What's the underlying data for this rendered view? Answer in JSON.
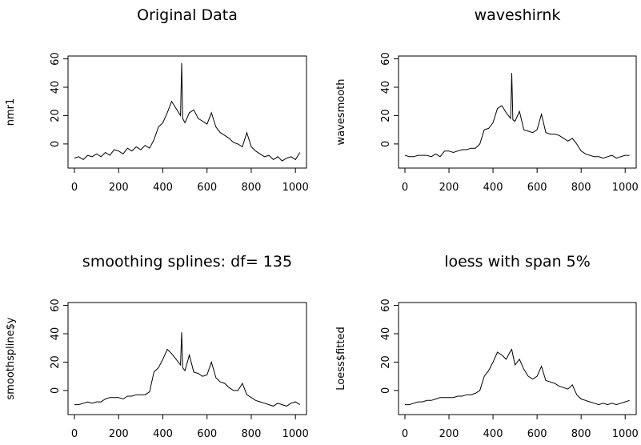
{
  "chart_data": [
    {
      "type": "line",
      "title": "Original Data",
      "y_label": "nmr1",
      "color": "#000000",
      "x": [
        0,
        20,
        40,
        60,
        80,
        100,
        120,
        140,
        160,
        180,
        200,
        220,
        240,
        260,
        280,
        300,
        320,
        340,
        360,
        380,
        400,
        420,
        440,
        460,
        480,
        485,
        490,
        500,
        520,
        540,
        560,
        580,
        600,
        620,
        640,
        660,
        680,
        700,
        720,
        740,
        760,
        780,
        800,
        820,
        840,
        860,
        880,
        900,
        920,
        940,
        960,
        980,
        1000,
        1020
      ],
      "values": [
        -10,
        -9,
        -11,
        -8,
        -9,
        -7,
        -9,
        -6,
        -8,
        -4,
        -5,
        -7,
        -3,
        -5,
        -2,
        -4,
        -1,
        -3,
        3,
        12,
        15,
        22,
        30,
        25,
        20,
        57,
        18,
        15,
        22,
        24,
        18,
        16,
        14,
        22,
        12,
        8,
        6,
        4,
        1,
        0,
        -2,
        8,
        -2,
        -5,
        -7,
        -9,
        -8,
        -11,
        -9,
        -12,
        -10,
        -9,
        -11,
        -6
      ],
      "xlim": [
        -29,
        1050
      ],
      "ylim": [
        -17,
        62
      ],
      "xticks": [
        0,
        200,
        400,
        600,
        800,
        1000
      ],
      "yticks": [
        0,
        20,
        40,
        60
      ]
    },
    {
      "type": "line",
      "title": "waveshirnk",
      "y_label": "wavesmooth",
      "color": "#000000",
      "x": [
        0,
        20,
        40,
        60,
        80,
        100,
        120,
        140,
        160,
        180,
        200,
        220,
        240,
        260,
        280,
        300,
        320,
        340,
        360,
        380,
        400,
        420,
        440,
        460,
        480,
        485,
        490,
        500,
        520,
        540,
        560,
        580,
        600,
        620,
        640,
        660,
        680,
        700,
        720,
        740,
        760,
        780,
        800,
        820,
        840,
        860,
        880,
        900,
        920,
        940,
        960,
        980,
        1000,
        1020
      ],
      "values": [
        -8,
        -9,
        -9,
        -8,
        -8,
        -8,
        -9,
        -7,
        -9,
        -5,
        -5,
        -6,
        -5,
        -4,
        -4,
        -3,
        -3,
        0,
        10,
        11,
        15,
        25,
        27,
        22,
        18,
        50,
        17,
        16,
        23,
        10,
        9,
        8,
        10,
        21,
        8,
        7,
        7,
        6,
        4,
        2,
        4,
        0,
        -5,
        -7,
        -8,
        -9,
        -9,
        -10,
        -9,
        -8,
        -10,
        -9,
        -8,
        -8
      ],
      "xlim": [
        -29,
        1050
      ],
      "ylim": [
        -17,
        62
      ],
      "xticks": [
        0,
        200,
        400,
        600,
        800,
        1000
      ],
      "yticks": [
        0,
        20,
        40,
        60
      ]
    },
    {
      "type": "line",
      "title": "smoothing splines: df= 135",
      "y_label": "smoothspline$y",
      "color": "#000000",
      "x": [
        0,
        20,
        40,
        60,
        80,
        100,
        120,
        140,
        160,
        180,
        200,
        220,
        240,
        260,
        280,
        300,
        320,
        340,
        360,
        380,
        400,
        420,
        440,
        460,
        480,
        485,
        490,
        500,
        520,
        540,
        560,
        580,
        600,
        620,
        640,
        660,
        680,
        700,
        720,
        740,
        760,
        780,
        800,
        820,
        840,
        860,
        880,
        900,
        920,
        940,
        960,
        980,
        1000,
        1020
      ],
      "values": [
        -10,
        -10,
        -9,
        -8,
        -9,
        -8,
        -8,
        -6,
        -5,
        -5,
        -5,
        -6,
        -4,
        -4,
        -3,
        -3,
        -3,
        -1,
        13,
        16,
        22,
        29,
        26,
        22,
        18,
        41,
        16,
        14,
        25,
        13,
        12,
        10,
        11,
        20,
        9,
        6,
        5,
        2,
        0,
        0,
        5,
        -3,
        -5,
        -7,
        -8,
        -9,
        -10,
        -11,
        -9,
        -10,
        -11,
        -9,
        -8,
        -10
      ],
      "xlim": [
        -29,
        1050
      ],
      "ylim": [
        -17,
        62
      ],
      "xticks": [
        0,
        200,
        400,
        600,
        800,
        1000
      ],
      "yticks": [
        0,
        20,
        40,
        60
      ]
    },
    {
      "type": "line",
      "title": "loess with span 5%",
      "y_label": "Loess$fitted",
      "color": "#000000",
      "x": [
        0,
        20,
        40,
        60,
        80,
        100,
        120,
        140,
        160,
        180,
        200,
        220,
        240,
        260,
        280,
        300,
        320,
        340,
        360,
        380,
        400,
        420,
        440,
        460,
        480,
        485,
        490,
        500,
        520,
        540,
        560,
        580,
        600,
        620,
        640,
        660,
        680,
        700,
        720,
        740,
        760,
        780,
        800,
        820,
        840,
        860,
        880,
        900,
        920,
        940,
        960,
        980,
        1000,
        1020
      ],
      "values": [
        -10,
        -10,
        -9,
        -8,
        -8,
        -7,
        -7,
        -6,
        -5,
        -5,
        -5,
        -5,
        -4,
        -4,
        -3,
        -3,
        -2,
        0,
        10,
        14,
        20,
        27,
        25,
        22,
        28,
        29,
        25,
        18,
        22,
        15,
        10,
        8,
        10,
        17,
        7,
        6,
        5,
        3,
        2,
        1,
        4,
        -3,
        -6,
        -7,
        -8,
        -9,
        -10,
        -9,
        -10,
        -9,
        -10,
        -9,
        -8,
        -7
      ],
      "xlim": [
        -29,
        1050
      ],
      "ylim": [
        -17,
        62
      ],
      "xticks": [
        0,
        200,
        400,
        600,
        800,
        1000
      ],
      "yticks": [
        0,
        20,
        40,
        60
      ]
    }
  ]
}
